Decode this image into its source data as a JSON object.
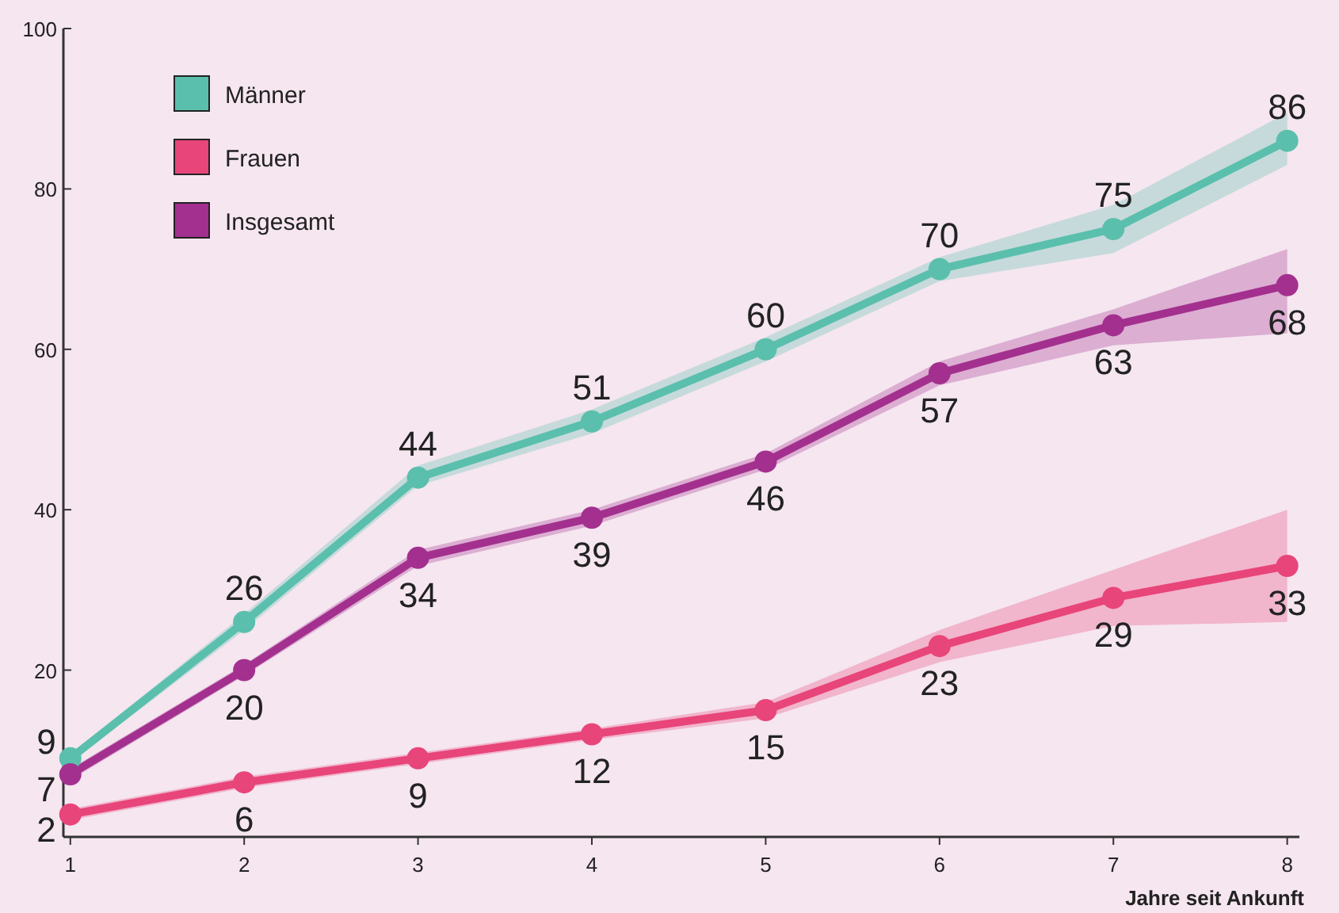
{
  "chart_data": {
    "type": "line",
    "xlabel": "Jahre seit Ankunft",
    "x": [
      1,
      2,
      3,
      4,
      5,
      6,
      7,
      8
    ],
    "xlim": [
      0.96,
      8.07
    ],
    "xticks": [
      1,
      2,
      3,
      4,
      5,
      6,
      7,
      8
    ],
    "ylim": [
      -0.8,
      100
    ],
    "yticks": [
      20,
      40,
      60,
      80,
      100
    ],
    "grid": false,
    "legend": "top left",
    "marker": "circle",
    "line_style": "solid",
    "data_labels": true,
    "series": [
      {
        "name": "Männer",
        "color": "#5bbfad",
        "values": [
          9,
          26,
          44,
          51,
          60,
          70,
          75,
          86
        ],
        "lower": [
          8.5,
          25,
          43,
          49.5,
          58.5,
          68.5,
          72,
          83
        ],
        "upper": [
          9.5,
          27,
          45.5,
          52.5,
          61.5,
          71.5,
          78,
          89.5
        ]
      },
      {
        "name": "Frauen",
        "color": "#e8457a",
        "values": [
          2,
          6,
          9,
          12,
          15,
          23,
          29,
          33
        ],
        "lower": [
          1.3,
          5.3,
          8.3,
          11.3,
          14,
          21,
          25.5,
          26
        ],
        "upper": [
          2.7,
          6.7,
          9.7,
          12.7,
          16,
          25,
          32.5,
          40
        ]
      },
      {
        "name": "Insgesamt",
        "color": "#a3308e",
        "values": [
          7,
          20,
          34,
          39,
          46,
          57,
          63,
          68
        ],
        "lower": [
          6.3,
          19.3,
          33,
          38,
          45,
          55.5,
          60.5,
          62
        ],
        "upper": [
          7.7,
          20.7,
          35,
          40,
          47,
          58.5,
          65,
          72.5
        ]
      }
    ]
  }
}
